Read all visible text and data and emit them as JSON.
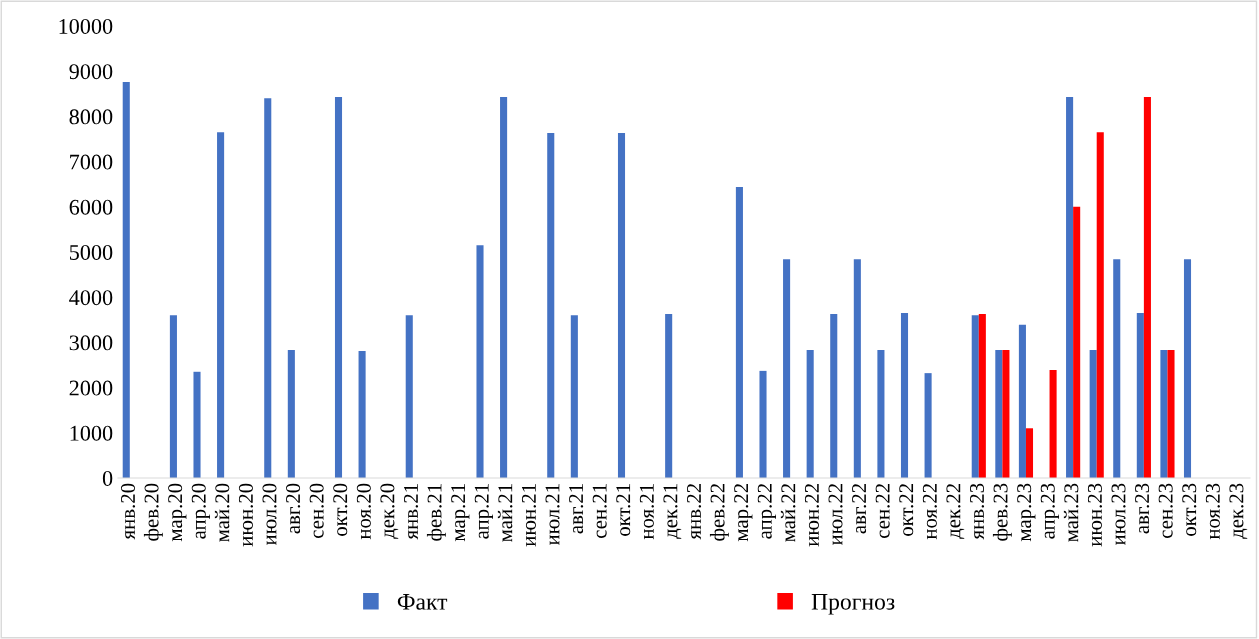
{
  "chart_data": {
    "type": "bar",
    "categories": [
      "янв.20",
      "фев.20",
      "мар.20",
      "апр.20",
      "май.20",
      "июн.20",
      "июл.20",
      "авг.20",
      "сен.20",
      "окт.20",
      "ноя.20",
      "дек.20",
      "янв.21",
      "фев.21",
      "мар.21",
      "апр.21",
      "май.21",
      "июн.21",
      "июл.21",
      "авг.21",
      "сен.21",
      "окт.21",
      "ноя.21",
      "дек.21",
      "янв.22",
      "фев.22",
      "мар.22",
      "апр.22",
      "май.22",
      "июн.22",
      "июл.22",
      "авг.22",
      "сен.22",
      "окт.22",
      "ноя.22",
      "дек.22",
      "янв.23",
      "фев.23",
      "мар.23",
      "апр.23",
      "май.23",
      "июн.23",
      "июл.23",
      "авг.23",
      "сен.23",
      "окт.23",
      "ноя.23",
      "дек.23"
    ],
    "series": [
      {
        "name": "Факт",
        "color": "#4472c4",
        "values": [
          8760,
          null,
          3600,
          2350,
          7650,
          null,
          8400,
          2830,
          null,
          8430,
          2810,
          null,
          3600,
          null,
          null,
          5150,
          8430,
          null,
          7630,
          3600,
          null,
          7630,
          null,
          3630,
          null,
          null,
          6440,
          2370,
          4840,
          2830,
          3630,
          4840,
          2830,
          3650,
          2320,
          null,
          3600,
          2830,
          3390,
          null,
          8430,
          2830,
          4840,
          3650,
          2830,
          4840,
          null,
          null
        ]
      },
      {
        "name": "Прогноз",
        "color": "#ff0000",
        "values": [
          null,
          null,
          null,
          null,
          null,
          null,
          null,
          null,
          null,
          null,
          null,
          null,
          null,
          null,
          null,
          null,
          null,
          null,
          null,
          null,
          null,
          null,
          null,
          null,
          null,
          null,
          null,
          null,
          null,
          null,
          null,
          null,
          null,
          null,
          null,
          null,
          3630,
          2830,
          1100,
          2390,
          6000,
          7650,
          null,
          8430,
          2830,
          null,
          null,
          null
        ]
      }
    ],
    "ylim": [
      0,
      10000
    ],
    "yticks": [
      0,
      1000,
      2000,
      3000,
      4000,
      5000,
      6000,
      7000,
      8000,
      9000,
      10000
    ],
    "grid": false,
    "legend": "bottom"
  }
}
